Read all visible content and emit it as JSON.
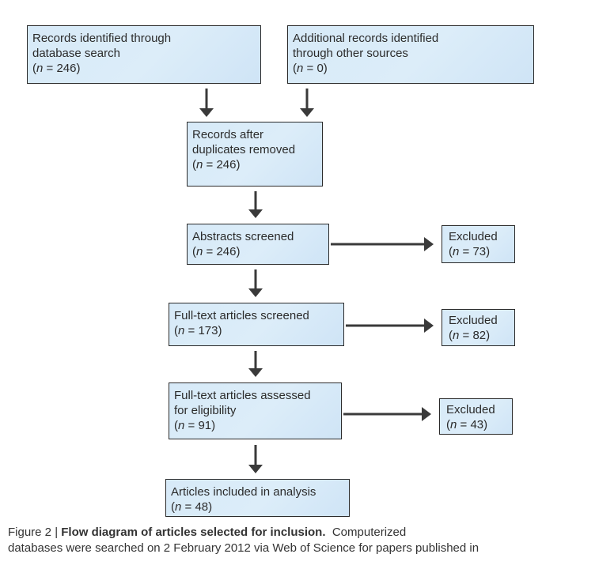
{
  "boxes": {
    "database": {
      "lines": [
        "Records identified through",
        "database search"
      ],
      "n": "= 246)"
    },
    "other": {
      "lines": [
        "Additional records identified",
        "through other sources"
      ],
      "n": "= 0)"
    },
    "dedup": {
      "lines": [
        "Records after",
        "duplicates removed"
      ],
      "n": "= 246)"
    },
    "abstracts": {
      "lines": [
        "Abstracts screened"
      ],
      "n": "= 246)"
    },
    "fulltext": {
      "lines": [
        "Full-text articles screened"
      ],
      "n": "= 173)"
    },
    "eligibility": {
      "lines": [
        "Full-text articles assessed",
        "for eligibility"
      ],
      "n": "= 91)"
    },
    "included": {
      "lines": [
        "Articles included in analysis"
      ],
      "n": "= 48)"
    }
  },
  "excluded": [
    {
      "label": "Excluded",
      "n": "= 73)"
    },
    {
      "label": "Excluded",
      "n": "= 82)"
    },
    {
      "label": "Excluded",
      "n": "= 43)"
    }
  ],
  "n_symbol": "n",
  "n_open": "(",
  "caption": {
    "prefix": "Figure 2 | ",
    "title": "Flow diagram of articles selected for inclusion.",
    "text1": "  Computerized",
    "line2": "databases were searched on 2 February 2012 via Web of Science for papers published in"
  },
  "colors": {
    "box_fill": "#d7eaf8",
    "box_border": "#2a2a2a",
    "arrow": "#3a3a3a"
  }
}
